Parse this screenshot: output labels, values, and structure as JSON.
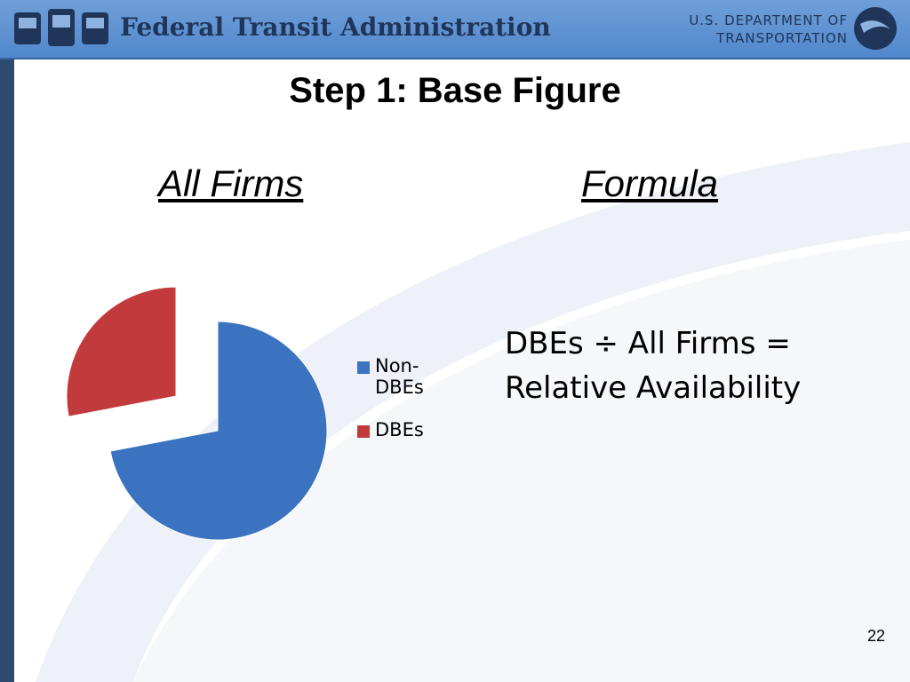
{
  "header": {
    "agency": "Federal Transit Administration",
    "department_line1": "U.S. DEPARTMENT OF",
    "department_line2": "TRANSPORTATION"
  },
  "title": "Step 1: Base Figure",
  "left_heading": "All Firms",
  "right_heading": "Formula",
  "formula": "DBEs ÷ All Firms = Relative Availability",
  "page_number": "22",
  "chart_data": {
    "type": "pie",
    "categories": [
      "Non-DBEs",
      "DBEs"
    ],
    "values": [
      72,
      28
    ],
    "colors": [
      "#3b73c0",
      "#c23b3c"
    ],
    "exploded": [
      false,
      true
    ]
  }
}
